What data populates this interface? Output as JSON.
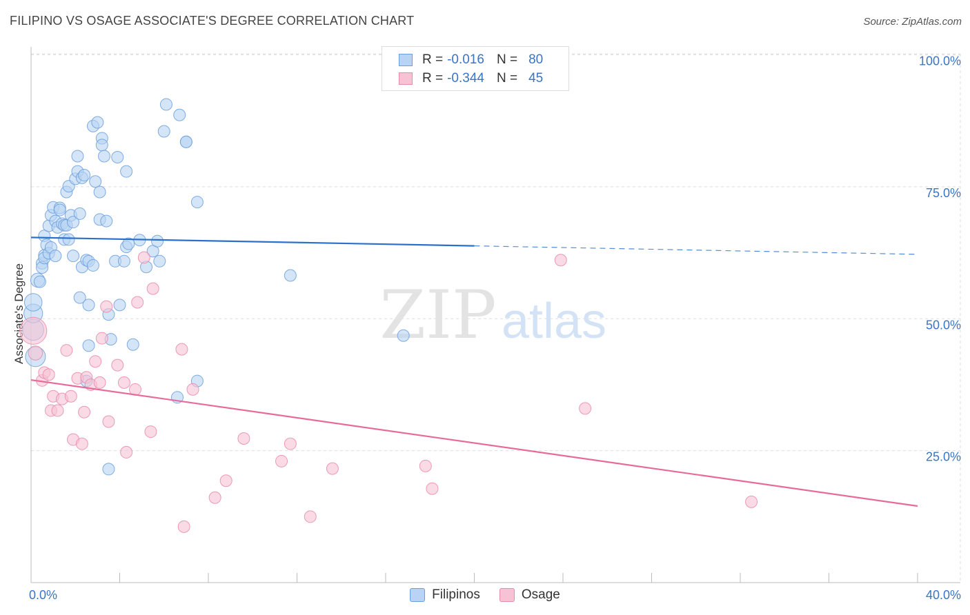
{
  "header": {
    "title": "FILIPINO VS OSAGE ASSOCIATE'S DEGREE CORRELATION CHART",
    "source": "Source: ZipAtlas.com"
  },
  "legend": {
    "rows": [
      {
        "r_label": "R =",
        "r_value": "-0.016",
        "n_label": "N =",
        "n_value": "80"
      },
      {
        "r_label": "R =",
        "r_value": "-0.344",
        "n_label": "N =",
        "n_value": "45"
      }
    ],
    "series": [
      "Filipinos",
      "Osage"
    ]
  },
  "colors": {
    "filipinos_fill": "#b8d3f3",
    "filipinos_stroke": "#6b9fdc",
    "filipinos_line": "#2a6fcb",
    "osage_fill": "#f7c3d4",
    "osage_stroke": "#e88aa9",
    "osage_line": "#e76a98",
    "axis_label": "#3a74c4",
    "grid": "#dddddd"
  },
  "watermark": {
    "part1": "ZIP",
    "part2": "atlas"
  },
  "chart_data": {
    "type": "scatter",
    "title": "FILIPINO VS OSAGE ASSOCIATE'S DEGREE CORRELATION CHART",
    "xlabel": "",
    "ylabel": "Associate's Degree",
    "xlim": [
      0,
      40
    ],
    "ylim": [
      0,
      100
    ],
    "x_tick_labels": [
      "0.0%",
      "40.0%"
    ],
    "y_ticks": [
      {
        "value": 25,
        "label": "25.0%"
      },
      {
        "value": 50,
        "label": "50.0%"
      },
      {
        "value": 75,
        "label": "75.0%"
      },
      {
        "value": 100,
        "label": "100.0%"
      }
    ],
    "grid": true,
    "legend_position": "top-center",
    "series": [
      {
        "name": "Filipinos",
        "r": -0.016,
        "n": 80,
        "trend": {
          "x0": 0,
          "y0": 65.4,
          "x1": 20,
          "y1": 63.8,
          "dashed_to_x": 40,
          "dashed_to_y": 62.2
        },
        "points": [
          [
            0.1,
            47.9,
            1.8
          ],
          [
            0.1,
            51.0,
            1.6
          ],
          [
            0.1,
            53.1,
            1.5
          ],
          [
            0.2,
            42.8,
            1.7
          ],
          [
            0.3,
            57.3,
            1.2
          ],
          [
            0.4,
            57.0,
            1.0
          ],
          [
            0.5,
            60.5,
            1.0
          ],
          [
            0.5,
            59.7,
            1.0
          ],
          [
            0.6,
            62.0,
            1.0
          ],
          [
            0.6,
            61.5,
            1.0
          ],
          [
            0.6,
            65.7,
            1.0
          ],
          [
            0.7,
            64.0,
            1.0
          ],
          [
            0.8,
            62.4,
            1.0
          ],
          [
            0.8,
            67.6,
            1.0
          ],
          [
            0.9,
            69.6,
            1.0
          ],
          [
            0.9,
            63.5,
            1.0
          ],
          [
            1.0,
            71.1,
            1.0
          ],
          [
            1.1,
            61.9,
            1.0
          ],
          [
            1.1,
            68.5,
            1.0
          ],
          [
            1.2,
            67.3,
            1.0
          ],
          [
            1.3,
            71.0,
            1.0
          ],
          [
            1.3,
            70.6,
            1.0
          ],
          [
            1.4,
            68.0,
            1.0
          ],
          [
            1.5,
            67.7,
            1.0
          ],
          [
            1.5,
            65.0,
            1.0
          ],
          [
            1.6,
            74.0,
            1.0
          ],
          [
            1.6,
            67.7,
            1.0
          ],
          [
            1.7,
            75.1,
            1.0
          ],
          [
            1.7,
            65.0,
            1.0
          ],
          [
            1.8,
            69.6,
            1.0
          ],
          [
            1.9,
            68.3,
            1.0
          ],
          [
            1.9,
            61.9,
            1.0
          ],
          [
            2.0,
            76.5,
            1.0
          ],
          [
            2.1,
            77.9,
            1.0
          ],
          [
            2.1,
            80.8,
            1.0
          ],
          [
            2.2,
            54.0,
            1.0
          ],
          [
            2.2,
            69.9,
            1.0
          ],
          [
            2.3,
            76.7,
            1.0
          ],
          [
            2.3,
            59.8,
            1.0
          ],
          [
            2.4,
            77.2,
            1.0
          ],
          [
            2.5,
            61.1,
            1.0
          ],
          [
            2.6,
            60.9,
            1.0
          ],
          [
            2.6,
            52.6,
            1.0
          ],
          [
            2.6,
            44.9,
            1.0
          ],
          [
            2.8,
            60.1,
            1.0
          ],
          [
            2.8,
            86.5,
            1.0
          ],
          [
            2.9,
            76.0,
            1.0
          ],
          [
            3.0,
            87.2,
            1.0
          ],
          [
            3.1,
            68.8,
            1.0
          ],
          [
            3.1,
            74.0,
            1.0
          ],
          [
            3.2,
            84.2,
            1.0
          ],
          [
            3.2,
            82.9,
            1.0
          ],
          [
            3.3,
            80.8,
            1.0
          ],
          [
            3.4,
            68.5,
            1.0
          ],
          [
            3.5,
            50.8,
            1.0
          ],
          [
            3.6,
            46.1,
            1.0
          ],
          [
            3.8,
            60.9,
            1.0
          ],
          [
            3.9,
            80.6,
            1.0
          ],
          [
            4.0,
            52.6,
            1.0
          ],
          [
            4.2,
            60.9,
            1.0
          ],
          [
            4.3,
            63.6,
            1.0
          ],
          [
            4.3,
            77.9,
            1.0
          ],
          [
            4.4,
            64.2,
            1.0
          ],
          [
            4.6,
            45.1,
            1.0
          ],
          [
            4.9,
            64.9,
            1.0
          ],
          [
            5.2,
            59.8,
            1.0
          ],
          [
            5.5,
            62.8,
            1.0
          ],
          [
            5.7,
            64.7,
            1.0
          ],
          [
            5.8,
            60.9,
            1.0
          ],
          [
            6.0,
            85.5,
            1.0
          ],
          [
            6.1,
            90.6,
            1.0
          ],
          [
            6.7,
            88.6,
            1.0
          ],
          [
            7.0,
            83.5,
            1.0
          ],
          [
            7.0,
            83.5,
            1.0
          ],
          [
            7.5,
            72.1,
            1.0
          ],
          [
            7.5,
            38.2,
            1.0
          ],
          [
            6.6,
            35.1,
            1.0
          ],
          [
            2.5,
            38.2,
            1.0
          ],
          [
            3.5,
            21.5,
            1.0
          ],
          [
            11.7,
            58.2,
            1.0
          ],
          [
            16.8,
            46.8,
            1.0
          ]
        ]
      },
      {
        "name": "Osage",
        "r": -0.344,
        "n": 45,
        "trend": {
          "x0": 0,
          "y0": 38.4,
          "x1": 40,
          "y1": 14.5
        },
        "points": [
          [
            0.1,
            47.7,
            2.3
          ],
          [
            0.2,
            43.5,
            1.2
          ],
          [
            0.5,
            38.3,
            1.0
          ],
          [
            0.6,
            39.8,
            1.0
          ],
          [
            0.8,
            39.4,
            1.0
          ],
          [
            0.9,
            32.6,
            1.0
          ],
          [
            1.0,
            35.3,
            1.0
          ],
          [
            1.2,
            32.6,
            1.0
          ],
          [
            1.4,
            34.8,
            1.0
          ],
          [
            1.6,
            44.0,
            1.0
          ],
          [
            1.8,
            35.3,
            1.0
          ],
          [
            1.9,
            27.1,
            1.0
          ],
          [
            2.1,
            38.7,
            1.0
          ],
          [
            2.3,
            26.3,
            1.0
          ],
          [
            2.4,
            32.3,
            1.0
          ],
          [
            2.5,
            38.9,
            1.0
          ],
          [
            2.7,
            37.5,
            1.0
          ],
          [
            2.9,
            41.9,
            1.0
          ],
          [
            3.1,
            37.9,
            1.0
          ],
          [
            3.2,
            46.3,
            1.0
          ],
          [
            3.4,
            52.3,
            1.0
          ],
          [
            3.5,
            30.5,
            1.0
          ],
          [
            3.9,
            41.2,
            1.0
          ],
          [
            4.2,
            37.9,
            1.0
          ],
          [
            4.3,
            24.7,
            1.0
          ],
          [
            4.7,
            36.6,
            1.0
          ],
          [
            4.8,
            53.1,
            1.0
          ],
          [
            5.1,
            61.6,
            1.0
          ],
          [
            5.4,
            28.6,
            1.0
          ],
          [
            5.5,
            55.7,
            1.0
          ],
          [
            6.8,
            44.2,
            1.0
          ],
          [
            6.9,
            10.6,
            1.0
          ],
          [
            7.3,
            36.6,
            1.0
          ],
          [
            8.3,
            16.1,
            1.0
          ],
          [
            8.8,
            19.3,
            1.0
          ],
          [
            9.6,
            27.3,
            1.0
          ],
          [
            11.3,
            23.0,
            1.0
          ],
          [
            11.7,
            26.3,
            1.0
          ],
          [
            12.6,
            12.5,
            1.0
          ],
          [
            13.6,
            21.6,
            1.0
          ],
          [
            17.8,
            22.1,
            1.0
          ],
          [
            18.1,
            17.8,
            1.0
          ],
          [
            23.9,
            61.1,
            1.0
          ],
          [
            25.0,
            33.0,
            1.0
          ],
          [
            32.5,
            15.3,
            1.0
          ]
        ]
      }
    ]
  }
}
